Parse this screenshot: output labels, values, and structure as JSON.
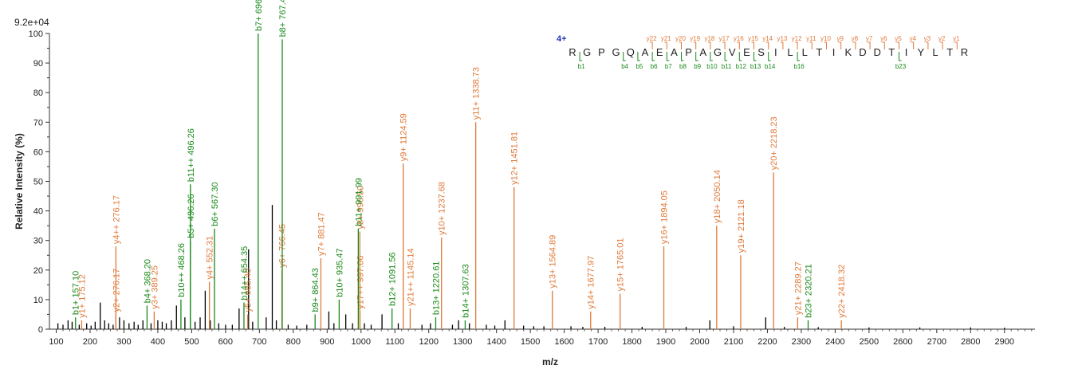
{
  "chart_data": {
    "type": "bar",
    "scale_max_label": "9.2e+04",
    "xlabel": "m/z",
    "ylabel": "Relative   Intensity (%)",
    "xlim": [
      80,
      2990
    ],
    "ylim": [
      0,
      100
    ],
    "x_ticks": [
      100,
      200,
      300,
      400,
      500,
      600,
      700,
      800,
      900,
      1000,
      1100,
      1200,
      1300,
      1400,
      1500,
      1600,
      1700,
      1800,
      1900,
      2000,
      2100,
      2200,
      2300,
      2400,
      2500,
      2600,
      2700,
      2800,
      2900
    ],
    "y_ticks": [
      0,
      10,
      20,
      30,
      40,
      50,
      60,
      70,
      80,
      90,
      100
    ],
    "colors": {
      "b_ion": "#1a8a1a",
      "y_ion": "#e07a3a",
      "unassigned": "#000000",
      "charge": "#2233bb"
    },
    "series": [
      {
        "name": "b",
        "peaks": [
          {
            "mz": 157.1,
            "intensity": 4,
            "label": "b1+ 157.10"
          },
          {
            "mz": 368.2,
            "intensity": 8,
            "label": "b4+ 368.20"
          },
          {
            "mz": 468.26,
            "intensity": 10,
            "label": "b10++ 468.26"
          },
          {
            "mz": 496.26,
            "intensity": 30,
            "label": "b5+ 496.26"
          },
          {
            "mz": 496.26,
            "intensity": 49,
            "label": "b11++ 496.26"
          },
          {
            "mz": 567.3,
            "intensity": 34,
            "label": "b6+ 567.30"
          },
          {
            "mz": 654.35,
            "intensity": 9,
            "label": "b14++ 654.35"
          },
          {
            "mz": 696.37,
            "intensity": 100,
            "label": "b7+ 696.37"
          },
          {
            "mz": 767.4,
            "intensity": 98,
            "label": "b8+ 767.40"
          },
          {
            "mz": 864.43,
            "intensity": 5,
            "label": "b9+ 864.43"
          },
          {
            "mz": 935.47,
            "intensity": 10,
            "label": "b10+ 935.47"
          },
          {
            "mz": 991.99,
            "intensity": 34,
            "label": "b11+ 991.99"
          },
          {
            "mz": 1091.56,
            "intensity": 7,
            "label": "b12+ 1091.56"
          },
          {
            "mz": 1220.61,
            "intensity": 4,
            "label": "b13+ 1220.61"
          },
          {
            "mz": 1307.63,
            "intensity": 3,
            "label": "b14+ 1307.63"
          },
          {
            "mz": 2320.21,
            "intensity": 3,
            "label": "b23+ 2320.21"
          }
        ]
      },
      {
        "name": "y",
        "peaks": [
          {
            "mz": 175.12,
            "intensity": 3,
            "label": "y1+ 175.12"
          },
          {
            "mz": 276.17,
            "intensity": 5,
            "label": "y2+ 276.17"
          },
          {
            "mz": 276.17,
            "intensity": 28,
            "label": "y4++ 276.17"
          },
          {
            "mz": 389.25,
            "intensity": 6,
            "label": "y3+ 389.25"
          },
          {
            "mz": 552.31,
            "intensity": 16,
            "label": "y4+ 552.31"
          },
          {
            "mz": 665.4,
            "intensity": 5,
            "label": "y5+ 665.40"
          },
          {
            "mz": 766.45,
            "intensity": 20,
            "label": "y6+ 766.45"
          },
          {
            "mz": 881.47,
            "intensity": 24,
            "label": "y7+ 881.47"
          },
          {
            "mz": 996.5,
            "intensity": 33,
            "label": "y8+ 996.50"
          },
          {
            "mz": 997.06,
            "intensity": 6,
            "label": "y17++ 997.06"
          },
          {
            "mz": 1124.59,
            "intensity": 56,
            "label": "y9+ 1124.59"
          },
          {
            "mz": 1145.14,
            "intensity": 7,
            "label": "y21++ 1145.14"
          },
          {
            "mz": 1237.68,
            "intensity": 31,
            "label": "y10+ 1237.68"
          },
          {
            "mz": 1338.73,
            "intensity": 70,
            "label": "y11+ 1338.73"
          },
          {
            "mz": 1451.81,
            "intensity": 48,
            "label": "y12+ 1451.81"
          },
          {
            "mz": 1564.89,
            "intensity": 13,
            "label": "y13+ 1564.89"
          },
          {
            "mz": 1677.97,
            "intensity": 6,
            "label": "y14+ 1677.97"
          },
          {
            "mz": 1765.01,
            "intensity": 12,
            "label": "y15+ 1765.01"
          },
          {
            "mz": 1894.05,
            "intensity": 28,
            "label": "y16+ 1894.05"
          },
          {
            "mz": 2050.14,
            "intensity": 35,
            "label": "y18+ 2050.14"
          },
          {
            "mz": 2121.18,
            "intensity": 25,
            "label": "y19+ 2121.18"
          },
          {
            "mz": 2218.23,
            "intensity": 53,
            "label": "y20+ 2218.23"
          },
          {
            "mz": 2289.27,
            "intensity": 4,
            "label": "y21+ 2289.27"
          },
          {
            "mz": 2418.32,
            "intensity": 3,
            "label": "y22+ 2418.32"
          }
        ]
      },
      {
        "name": "unassigned",
        "peaks": [
          {
            "mz": 105,
            "intensity": 2
          },
          {
            "mz": 120,
            "intensity": 1.5
          },
          {
            "mz": 135,
            "intensity": 3
          },
          {
            "mz": 147,
            "intensity": 2.5
          },
          {
            "mz": 168,
            "intensity": 1.5
          },
          {
            "mz": 190,
            "intensity": 2
          },
          {
            "mz": 203,
            "intensity": 1.2
          },
          {
            "mz": 215,
            "intensity": 2.5
          },
          {
            "mz": 230,
            "intensity": 9
          },
          {
            "mz": 243,
            "intensity": 3
          },
          {
            "mz": 255,
            "intensity": 2
          },
          {
            "mz": 268,
            "intensity": 1.5
          },
          {
            "mz": 287,
            "intensity": 4
          },
          {
            "mz": 300,
            "intensity": 3
          },
          {
            "mz": 315,
            "intensity": 2
          },
          {
            "mz": 330,
            "intensity": 2.5
          },
          {
            "mz": 342,
            "intensity": 1.5
          },
          {
            "mz": 356,
            "intensity": 3
          },
          {
            "mz": 380,
            "intensity": 2
          },
          {
            "mz": 400,
            "intensity": 3
          },
          {
            "mz": 413,
            "intensity": 2.5
          },
          {
            "mz": 425,
            "intensity": 2
          },
          {
            "mz": 440,
            "intensity": 3
          },
          {
            "mz": 455,
            "intensity": 8
          },
          {
            "mz": 480,
            "intensity": 4
          },
          {
            "mz": 510,
            "intensity": 2.5
          },
          {
            "mz": 525,
            "intensity": 4
          },
          {
            "mz": 540,
            "intensity": 13
          },
          {
            "mz": 555,
            "intensity": 3
          },
          {
            "mz": 580,
            "intensity": 2
          },
          {
            "mz": 600,
            "intensity": 1.5
          },
          {
            "mz": 620,
            "intensity": 1.5
          },
          {
            "mz": 640,
            "intensity": 7
          },
          {
            "mz": 668,
            "intensity": 27
          },
          {
            "mz": 680,
            "intensity": 2.5
          },
          {
            "mz": 720,
            "intensity": 4
          },
          {
            "mz": 738,
            "intensity": 42
          },
          {
            "mz": 750,
            "intensity": 3
          },
          {
            "mz": 785,
            "intensity": 1.5
          },
          {
            "mz": 810,
            "intensity": 1.2
          },
          {
            "mz": 840,
            "intensity": 1.5
          },
          {
            "mz": 905,
            "intensity": 6
          },
          {
            "mz": 920,
            "intensity": 2
          },
          {
            "mz": 955,
            "intensity": 5
          },
          {
            "mz": 975,
            "intensity": 2
          },
          {
            "mz": 1010,
            "intensity": 2
          },
          {
            "mz": 1030,
            "intensity": 1.5
          },
          {
            "mz": 1062,
            "intensity": 5
          },
          {
            "mz": 1110,
            "intensity": 2
          },
          {
            "mz": 1180,
            "intensity": 1.5
          },
          {
            "mz": 1205,
            "intensity": 2
          },
          {
            "mz": 1270,
            "intensity": 1.5
          },
          {
            "mz": 1288,
            "intensity": 3
          },
          {
            "mz": 1320,
            "intensity": 2
          },
          {
            "mz": 1370,
            "intensity": 1.5
          },
          {
            "mz": 1395,
            "intensity": 1.2
          },
          {
            "mz": 1425,
            "intensity": 3
          },
          {
            "mz": 1480,
            "intensity": 1.2
          },
          {
            "mz": 1510,
            "intensity": 1
          },
          {
            "mz": 1540,
            "intensity": 1
          },
          {
            "mz": 1620,
            "intensity": 1
          },
          {
            "mz": 1655,
            "intensity": 0.8
          },
          {
            "mz": 1720,
            "intensity": 0.8
          },
          {
            "mz": 1830,
            "intensity": 0.8
          },
          {
            "mz": 1960,
            "intensity": 0.8
          },
          {
            "mz": 2030,
            "intensity": 3
          },
          {
            "mz": 2100,
            "intensity": 1
          },
          {
            "mz": 2195,
            "intensity": 4
          },
          {
            "mz": 2250,
            "intensity": 0.8
          },
          {
            "mz": 2350,
            "intensity": 0.7
          },
          {
            "mz": 2500,
            "intensity": 0.6
          },
          {
            "mz": 2650,
            "intensity": 0.6
          },
          {
            "mz": 2800,
            "intensity": 0.6
          },
          {
            "mz": 2900,
            "intensity": 0.5
          }
        ]
      }
    ],
    "sequence_map": {
      "charge_label": "4+",
      "residues": [
        "R",
        "G",
        "P",
        "G",
        "Q",
        "A",
        "E",
        "A",
        "P",
        "A",
        "G",
        "V",
        "E",
        "S",
        "I",
        "L",
        "L",
        "T",
        "I",
        "K",
        "D",
        "D",
        "T",
        "I",
        "Y",
        "L",
        "T",
        "R"
      ],
      "y_ions": [
        "y22",
        "y21",
        "y20",
        "y19",
        "y18",
        "y17",
        "y16",
        "y15",
        "y14",
        "y13",
        "y12",
        "y11",
        "y10",
        "y9",
        "y8",
        "y7",
        "y6",
        "y5",
        "y4",
        "y3",
        "y2",
        "y1"
      ],
      "b_ions": [
        "b1",
        "b4",
        "b5",
        "b6",
        "b7",
        "b8",
        "b9",
        "b10",
        "b11",
        "b12",
        "b13",
        "b14",
        "b16",
        "b23"
      ]
    }
  }
}
